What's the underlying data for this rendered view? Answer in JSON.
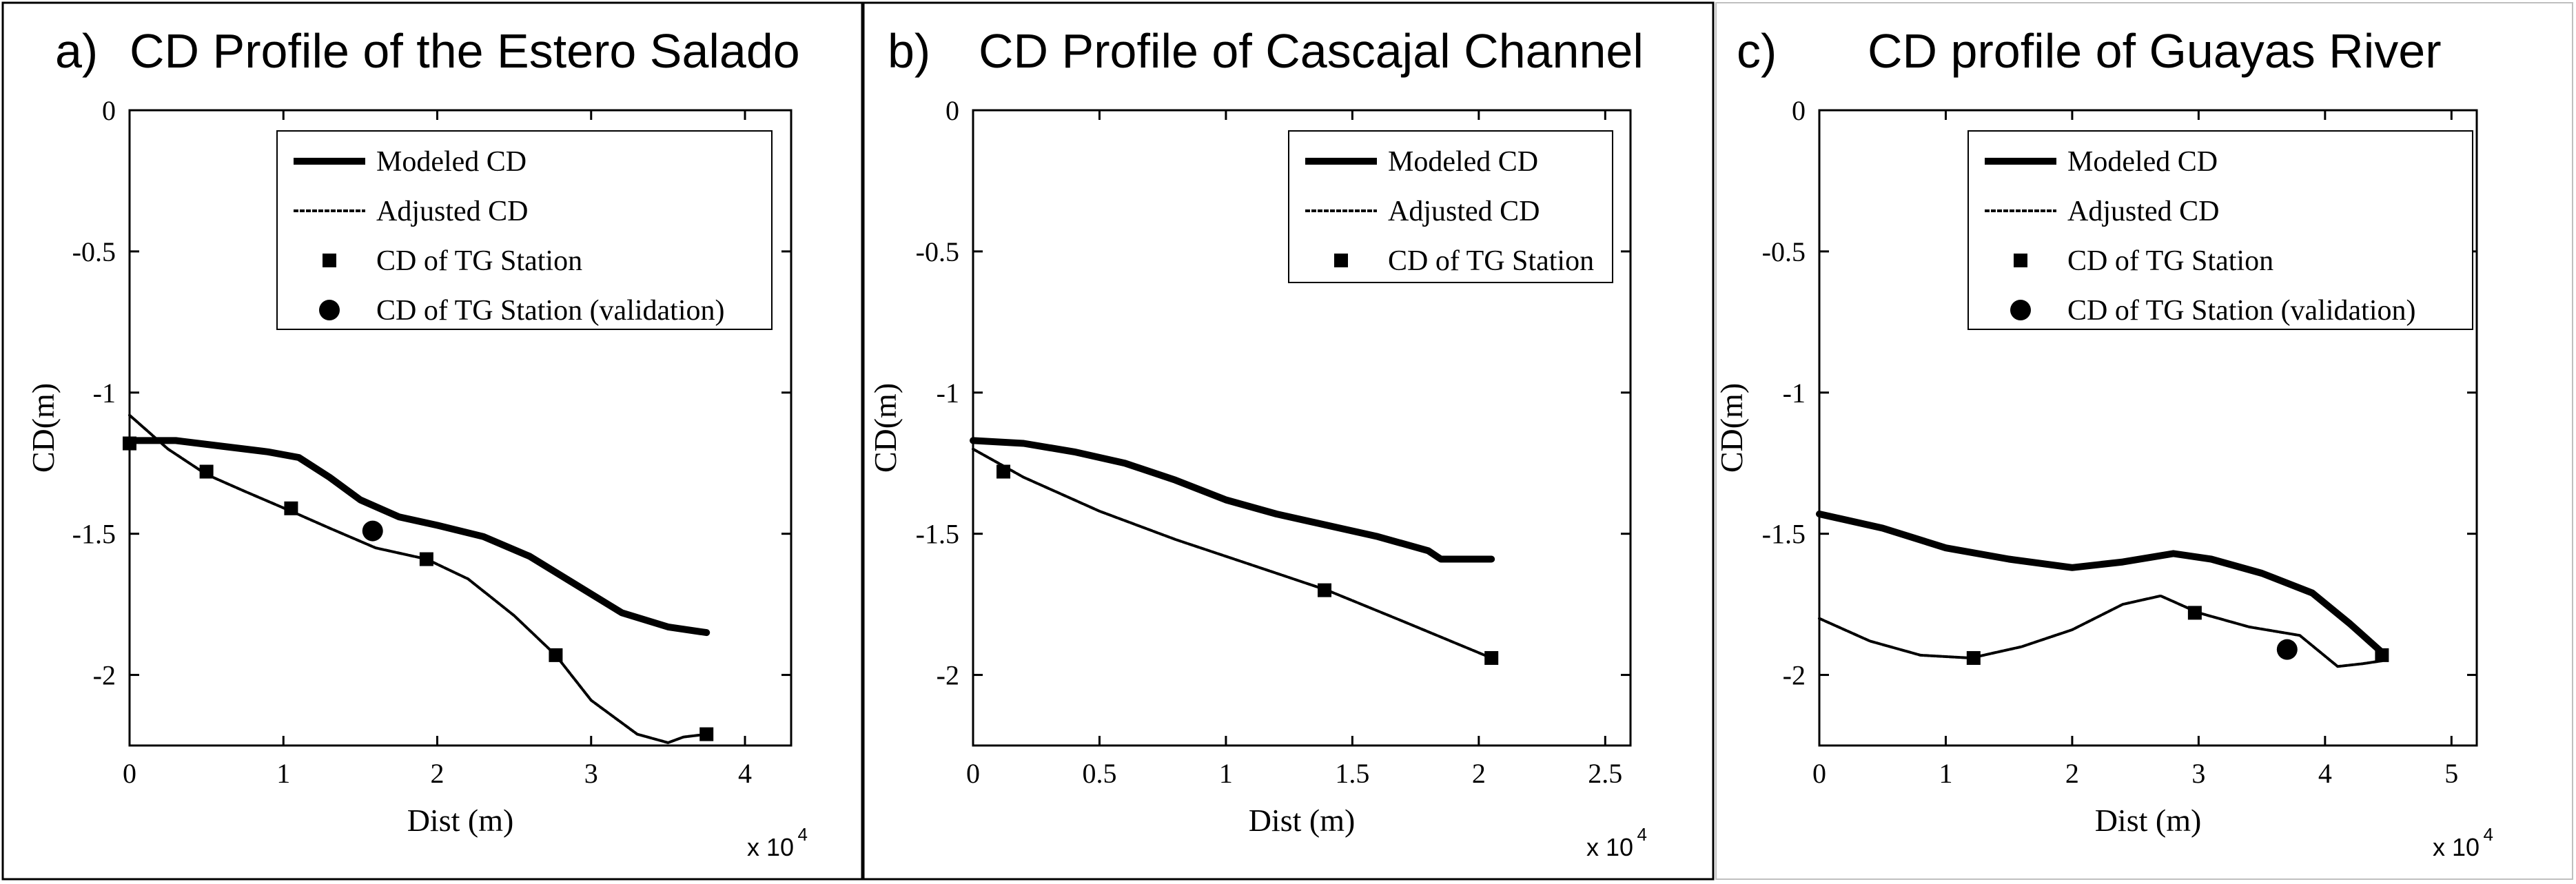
{
  "figure": {
    "colors": {
      "line": "#000000",
      "background": "#ffffff"
    }
  },
  "chart_data": [
    {
      "type": "line",
      "panel_label": "a)",
      "title": "CD Profile of the Estero Salado",
      "xlabel": "Dist (m)",
      "ylabel": "CD(m)",
      "x_multiplier": "x 10",
      "x_multiplier_exp": "4",
      "xlim": [
        0,
        4.3
      ],
      "ylim": [
        -2.25,
        0
      ],
      "xticks": [
        0,
        1,
        2,
        3,
        4
      ],
      "xtick_labels": [
        "0",
        "1",
        "2",
        "3",
        "4"
      ],
      "yticks": [
        0,
        -0.5,
        -1,
        -1.5,
        -2
      ],
      "ytick_labels": [
        "0",
        "-0.5",
        "-1",
        "-1.5",
        "-2"
      ],
      "legend_position": "top-center",
      "legend": [
        "Modeled CD",
        "Adjusted CD",
        "CD of TG Station",
        "CD of TG Station (validation)"
      ],
      "series": [
        {
          "name": "Modeled CD",
          "style": "thick",
          "x": [
            0,
            0.3,
            0.6,
            0.9,
            1.1,
            1.3,
            1.5,
            1.75,
            2.0,
            2.3,
            2.6,
            2.9,
            3.2,
            3.5,
            3.75
          ],
          "y": [
            -1.17,
            -1.17,
            -1.19,
            -1.21,
            -1.23,
            -1.3,
            -1.38,
            -1.44,
            -1.47,
            -1.51,
            -1.58,
            -1.68,
            -1.78,
            -1.83,
            -1.85
          ]
        },
        {
          "name": "Adjusted CD",
          "style": "thin",
          "x": [
            0,
            0.25,
            0.5,
            0.75,
            1.05,
            1.3,
            1.6,
            1.93,
            2.2,
            2.5,
            2.77,
            3.0,
            3.3,
            3.5,
            3.6,
            3.75
          ],
          "y": [
            -1.08,
            -1.2,
            -1.29,
            -1.35,
            -1.42,
            -1.48,
            -1.55,
            -1.59,
            -1.66,
            -1.79,
            -1.93,
            -2.09,
            -2.21,
            -2.24,
            -2.22,
            -2.21
          ]
        },
        {
          "name": "CD of TG Station",
          "style": "square",
          "x": [
            0.0,
            0.5,
            1.05,
            1.93,
            2.77,
            3.75
          ],
          "y": [
            -1.18,
            -1.28,
            -1.41,
            -1.59,
            -1.93,
            -2.21
          ]
        },
        {
          "name": "CD of TG Station (validation)",
          "style": "circle",
          "x": [
            1.58
          ],
          "y": [
            -1.49
          ]
        }
      ]
    },
    {
      "type": "line",
      "panel_label": "b)",
      "title": "CD Profile of Cascajal Channel",
      "xlabel": "Dist (m)",
      "ylabel": "CD(m)",
      "x_multiplier": "x 10",
      "x_multiplier_exp": "4",
      "xlim": [
        0,
        2.6
      ],
      "ylim": [
        -2.25,
        0
      ],
      "xticks": [
        0,
        0.5,
        1,
        1.5,
        2,
        2.5
      ],
      "xtick_labels": [
        "0",
        "0.5",
        "1",
        "1.5",
        "2",
        "2.5"
      ],
      "yticks": [
        0,
        -0.5,
        -1,
        -1.5,
        -2
      ],
      "ytick_labels": [
        "0",
        "-0.5",
        "-1",
        "-1.5",
        "-2"
      ],
      "legend_position": "top-right",
      "legend": [
        "Modeled CD",
        "Adjusted CD",
        "CD of TG Station"
      ],
      "series": [
        {
          "name": "Modeled CD",
          "style": "thick",
          "x": [
            0,
            0.2,
            0.4,
            0.6,
            0.8,
            1.0,
            1.2,
            1.4,
            1.6,
            1.8,
            1.85,
            2.0,
            2.05
          ],
          "y": [
            -1.17,
            -1.18,
            -1.21,
            -1.25,
            -1.31,
            -1.38,
            -1.43,
            -1.47,
            -1.51,
            -1.56,
            -1.59,
            -1.59,
            -1.59
          ]
        },
        {
          "name": "Adjusted CD",
          "style": "thin",
          "x": [
            0,
            0.2,
            0.5,
            0.8,
            1.1,
            1.4,
            1.7,
            2.05
          ],
          "y": [
            -1.2,
            -1.3,
            -1.42,
            -1.52,
            -1.61,
            -1.7,
            -1.81,
            -1.94
          ]
        },
        {
          "name": "CD of TG Station",
          "style": "square",
          "x": [
            0.12,
            1.39,
            2.05
          ],
          "y": [
            -1.28,
            -1.7,
            -1.94
          ]
        }
      ]
    },
    {
      "type": "line",
      "panel_label": "c)",
      "title": "CD profile of Guayas River",
      "xlabel": "Dist (m)",
      "ylabel": "CD(m)",
      "x_multiplier": "x 10",
      "x_multiplier_exp": "4",
      "xlim": [
        0,
        5.2
      ],
      "ylim": [
        -2.25,
        0
      ],
      "xticks": [
        0,
        1,
        2,
        3,
        4,
        5
      ],
      "xtick_labels": [
        "0",
        "1",
        "2",
        "3",
        "4",
        "5"
      ],
      "yticks": [
        0,
        -0.5,
        -1,
        -1.5,
        -2
      ],
      "ytick_labels": [
        "0",
        "-0.5",
        "-1",
        "-1.5",
        "-2"
      ],
      "legend_position": "top-center",
      "legend": [
        "Modeled CD",
        "Adjusted CD",
        "CD of TG Station",
        "CD of TG Station (validation)"
      ],
      "series": [
        {
          "name": "Modeled CD",
          "style": "thick",
          "x": [
            0,
            0.5,
            1.0,
            1.5,
            2.0,
            2.4,
            2.8,
            3.1,
            3.5,
            3.9,
            4.2,
            4.45
          ],
          "y": [
            -1.43,
            -1.48,
            -1.55,
            -1.59,
            -1.62,
            -1.6,
            -1.57,
            -1.59,
            -1.64,
            -1.71,
            -1.82,
            -1.92
          ]
        },
        {
          "name": "Adjusted CD",
          "style": "thin",
          "x": [
            0,
            0.4,
            0.8,
            1.2,
            1.6,
            2.0,
            2.4,
            2.7,
            3.0,
            3.4,
            3.8,
            4.1,
            4.3,
            4.45
          ],
          "y": [
            -1.8,
            -1.88,
            -1.93,
            -1.94,
            -1.9,
            -1.84,
            -1.75,
            -1.72,
            -1.78,
            -1.83,
            -1.86,
            -1.97,
            -1.96,
            -1.95
          ]
        },
        {
          "name": "CD of TG Station",
          "style": "square",
          "x": [
            1.22,
            2.97,
            4.45
          ],
          "y": [
            -1.94,
            -1.78,
            -1.93
          ]
        },
        {
          "name": "CD of TG Station (validation)",
          "style": "circle",
          "x": [
            3.7
          ],
          "y": [
            -1.91
          ]
        }
      ]
    }
  ]
}
